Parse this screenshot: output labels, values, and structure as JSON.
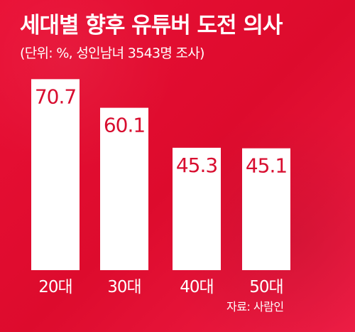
{
  "chart_data": {
    "type": "bar",
    "title": "세대별 향후 유튜버 도전 의사",
    "subtitle": "(단위: %, 성인남녀 3543명 조사)",
    "categories": [
      "20대",
      "30대",
      "40대",
      "50대"
    ],
    "values": [
      70.7,
      60.1,
      45.3,
      45.1
    ],
    "value_labels": [
      "70.7",
      "60.1",
      "45.3",
      "45.1"
    ],
    "xlabel": "",
    "ylabel": "",
    "ylim": [
      0,
      100
    ],
    "grid": false,
    "legend": "none",
    "colors": {
      "background": "#e90f36",
      "bar": "#ffffff",
      "text": "#ffffff",
      "value_text": "#d80d2f"
    }
  },
  "footer": {
    "source": "자료: 사람인"
  }
}
